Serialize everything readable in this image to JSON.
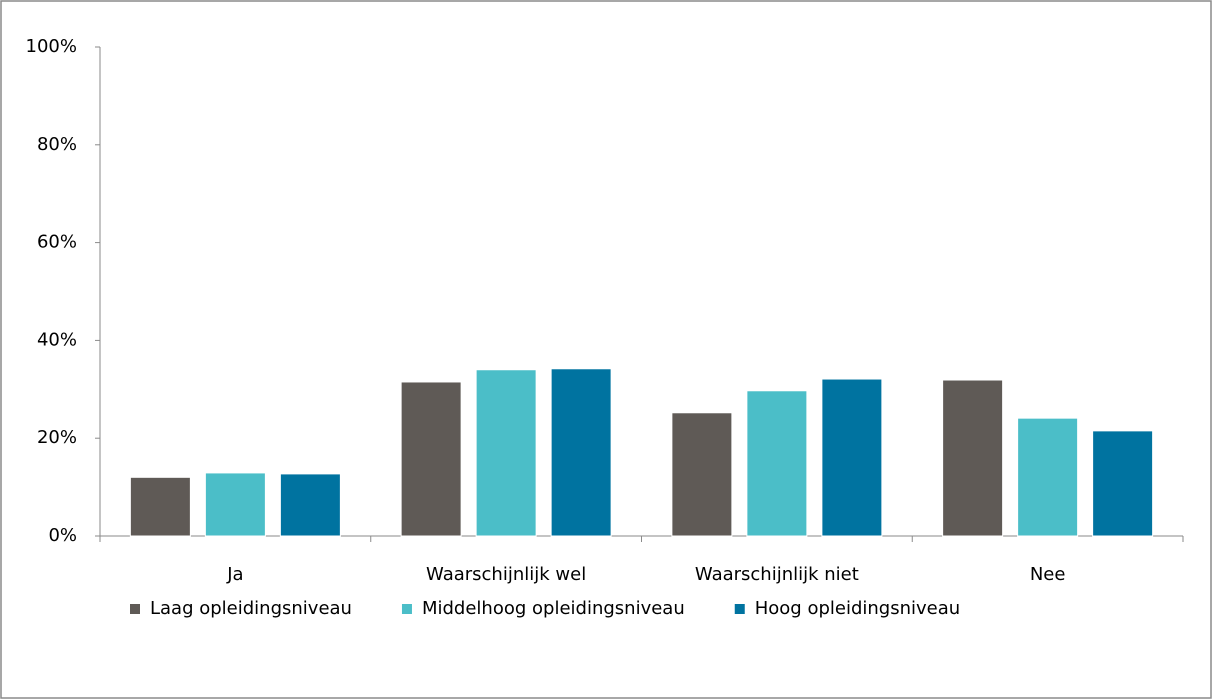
{
  "chart_data": {
    "type": "bar",
    "categories": [
      "Ja",
      "Waarschijnlijk wel",
      "Waarschijnlijk niet",
      "Nee"
    ],
    "series": [
      {
        "name": "Laag opleidingsniveau",
        "color": "#5f5a56",
        "values": [
          12,
          31.5,
          25.2,
          31.9
        ]
      },
      {
        "name": "Middelhoog opleidingsniveau",
        "color": "#4bbec8",
        "values": [
          12.9,
          34,
          29.7,
          24.1
        ]
      },
      {
        "name": "Hoog opleidingsniveau",
        "color": "#0073a0",
        "values": [
          12.7,
          34.2,
          32.1,
          21.5
        ]
      }
    ],
    "ylim": [
      0,
      100
    ],
    "yticks": [
      {
        "value": 0,
        "label": "0%"
      },
      {
        "value": 20,
        "label": "20%"
      },
      {
        "value": 40,
        "label": "40%"
      },
      {
        "value": 60,
        "label": "60%"
      },
      {
        "value": 80,
        "label": "80%"
      },
      {
        "value": 100,
        "label": "100%"
      }
    ],
    "grid": false,
    "legend": "bottom"
  }
}
